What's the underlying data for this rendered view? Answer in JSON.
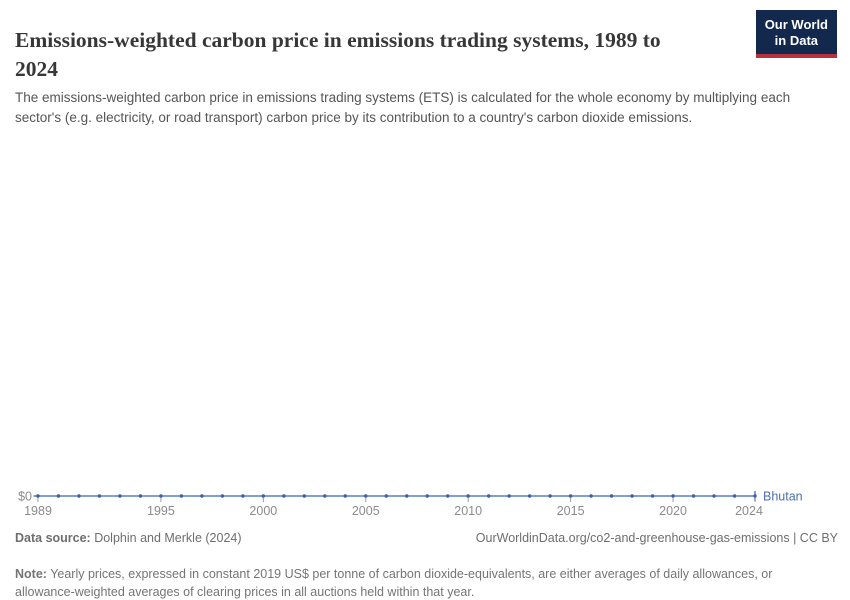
{
  "header": {
    "title": "Emissions-weighted carbon price in emissions trading systems, 1989 to 2024",
    "subtitle": "The emissions-weighted carbon price in emissions trading systems (ETS) is calculated for the whole economy by multiplying each sector's (e.g. electricity, or road transport) carbon price by its contribution to a country's carbon dioxide emissions.",
    "logo": {
      "line1": "Our World",
      "line2": "in Data",
      "bg_color": "#12294d",
      "stripe_color": "#b5333e"
    }
  },
  "chart_data": {
    "type": "line",
    "title": "Emissions-weighted carbon price in emissions trading systems, 1989 to 2024",
    "xlabel": "",
    "ylabel": "",
    "grid": false,
    "legend_position": "end-of-line",
    "x_range": [
      1989,
      2024
    ],
    "ylim": [
      0,
      0
    ],
    "y_ticks": [
      "$0"
    ],
    "x_ticks": [
      1989,
      1995,
      2000,
      2005,
      2010,
      2015,
      2020,
      2024
    ],
    "series": [
      {
        "name": "Bhutan",
        "line_color": "#5b7fbe",
        "point_color": "#3a5fa8",
        "label_color": "#4c6fb0",
        "x": [
          1989,
          1990,
          1991,
          1992,
          1993,
          1994,
          1995,
          1996,
          1997,
          1998,
          1999,
          2000,
          2001,
          2002,
          2003,
          2004,
          2005,
          2006,
          2007,
          2008,
          2009,
          2010,
          2011,
          2012,
          2013,
          2014,
          2015,
          2016,
          2017,
          2018,
          2019,
          2020,
          2021,
          2022,
          2023,
          2024
        ],
        "values": [
          0,
          0,
          0,
          0,
          0,
          0,
          0,
          0,
          0,
          0,
          0,
          0,
          0,
          0,
          0,
          0,
          0,
          0,
          0,
          0,
          0,
          0,
          0,
          0,
          0,
          0,
          0,
          0,
          0,
          0,
          0,
          0,
          0,
          0,
          0,
          0
        ]
      }
    ],
    "axis_label_color": "#8b8b8b",
    "tick_color": "#9b9b9b"
  },
  "footer": {
    "datasource_label": "Data source:",
    "datasource_value": " Dolphin and Merkle (2024)",
    "attribution": "OurWorldinData.org/co2-and-greenhouse-gas-emissions | CC BY",
    "note_label": "Note:",
    "note_value": " Yearly prices, expressed in constant 2019 US$ per tonne of carbon dioxide-equivalents, are either averages of daily allowances, or allowance-weighted averages of clearing prices in all auctions held within that year."
  }
}
